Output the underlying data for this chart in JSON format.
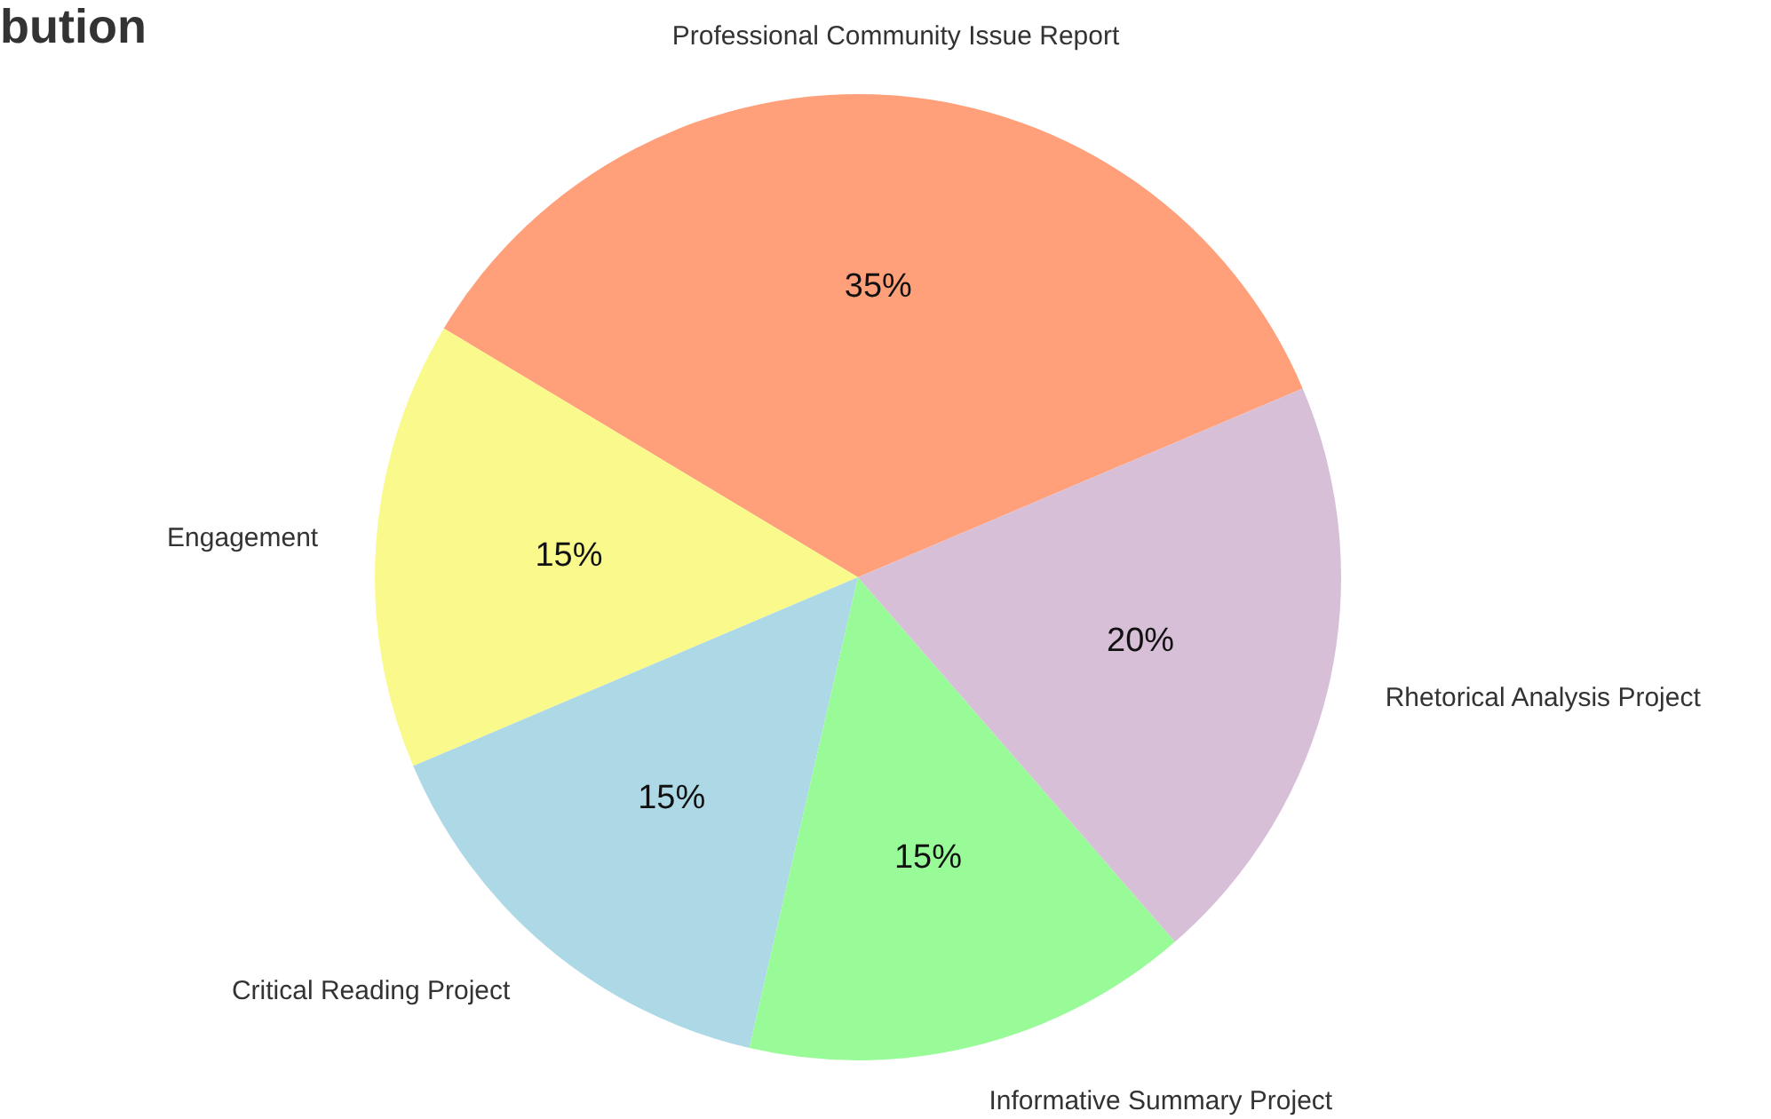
{
  "chart_data": {
    "type": "pie",
    "title": "bution",
    "categories": [
      "Professional Community Issue Report",
      "Engagement",
      "Critical Reading Project",
      "Informative Summary Project",
      "Rhetorical Analysis Project"
    ],
    "values": [
      35,
      15,
      15,
      15,
      20
    ],
    "colors": [
      "#ffa07a",
      "#fafa8c",
      "#add8e6",
      "#98fb98",
      "#d8bfd8"
    ],
    "value_labels": [
      "35%",
      "15%",
      "15%",
      "15%",
      "20%"
    ]
  }
}
